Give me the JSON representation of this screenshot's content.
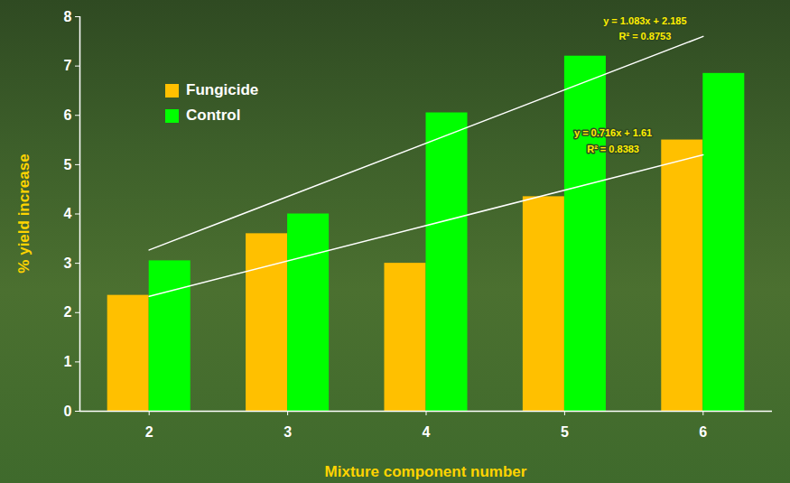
{
  "chart_data": {
    "type": "bar",
    "x_label": "Mixture component number",
    "y_label": "% yield increase",
    "categories": [
      "2",
      "3",
      "4",
      "5",
      "6"
    ],
    "series": [
      {
        "name": "Fungicide",
        "color": "#ffc000",
        "values": [
          2.35,
          3.6,
          3.0,
          4.35,
          5.5
        ]
      },
      {
        "name": "Control",
        "color": "#00ff00",
        "values": [
          3.05,
          4.0,
          6.05,
          7.2,
          6.85
        ]
      }
    ],
    "trendlines": [
      {
        "series": "Fungicide",
        "color": "#ffffff",
        "start": 2.33,
        "end": 5.2,
        "equation": "y = 0.716x + 1.61",
        "r_squared": "R² = 0.8383"
      },
      {
        "series": "Control",
        "color": "#ffffff",
        "start": 3.27,
        "end": 7.6,
        "equation": "y = 1.083x + 2.185",
        "r_squared": "R² = 0.8753"
      }
    ],
    "ylim": [
      0,
      8
    ],
    "yticks": [
      0,
      1,
      2,
      3,
      4,
      5,
      6,
      7,
      8
    ],
    "legend": "upper left",
    "grid": false
  }
}
